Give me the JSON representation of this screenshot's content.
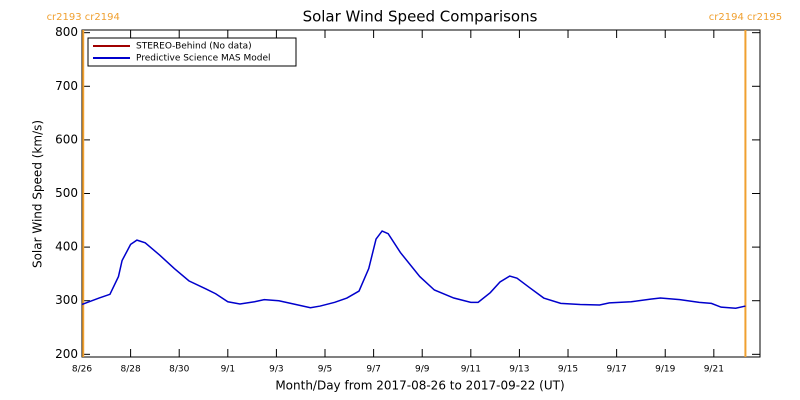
{
  "chart_data": {
    "type": "line",
    "title": "Solar Wind Speed Comparisons",
    "x_label": "Month/Day from 2017-08-26 to 2017-09-22 (UT)",
    "y_label": "Solar Wind Speed (km/s)",
    "x": [
      0,
      0.7,
      1.15,
      1.5,
      1.65,
      2,
      2.26,
      2.6,
      3.2,
      3.8,
      4.4,
      5.1,
      5.5,
      6,
      6.5,
      7.1,
      7.5,
      8.1,
      8.8,
      9.4,
      9.8,
      10.4,
      10.9,
      11.4,
      11.8,
      12.1,
      12.35,
      12.6,
      13.1,
      13.9,
      14.5,
      15.3,
      16,
      16.3,
      16.8,
      17.2,
      17.6,
      17.9,
      18.4,
      19,
      19.7,
      20.5,
      21.3,
      21.7,
      22.6,
      23.4,
      23.8,
      24.6,
      25.4,
      25.9,
      26.3,
      26.9,
      27.3
    ],
    "series": [
      {
        "name": "STEREO-Behind (No data)",
        "color": "#a00000",
        "values": [
          null,
          null,
          null,
          null,
          null,
          null,
          null,
          null,
          null,
          null,
          null,
          null,
          null,
          null,
          null,
          null,
          null,
          null,
          null,
          null,
          null,
          null,
          null,
          null,
          null,
          null,
          null,
          null,
          null,
          null,
          null,
          null,
          null,
          null,
          null,
          null,
          null,
          null,
          null,
          null,
          null,
          null,
          null,
          null,
          null,
          null,
          null,
          null,
          null,
          null,
          null,
          null,
          null
        ]
      },
      {
        "name": "Predictive Science MAS Model",
        "color": "#0000cc",
        "values": [
          293,
          305,
          312,
          345,
          375,
          405,
          413,
          408,
          385,
          360,
          337,
          322,
          313,
          298,
          294,
          298,
          302,
          300,
          293,
          287,
          290,
          297,
          305,
          318,
          360,
          415,
          430,
          425,
          390,
          345,
          320,
          305,
          297,
          297,
          315,
          335,
          346,
          342,
          325,
          305,
          295,
          293,
          292,
          296,
          298,
          303,
          305,
          302,
          297,
          295,
          288,
          286,
          290
        ]
      }
    ],
    "xlim": [
      0,
      27.9
    ],
    "xticks": [
      {
        "value": 0,
        "label": "8/26"
      },
      {
        "value": 2,
        "label": "8/28"
      },
      {
        "value": 4,
        "label": "8/30"
      },
      {
        "value": 6,
        "label": "9/1"
      },
      {
        "value": 8,
        "label": "9/3"
      },
      {
        "value": 10,
        "label": "9/5"
      },
      {
        "value": 12,
        "label": "9/7"
      },
      {
        "value": 14,
        "label": "9/9"
      },
      {
        "value": 16,
        "label": "9/11"
      },
      {
        "value": 18,
        "label": "9/13"
      },
      {
        "value": 20,
        "label": "9/15"
      },
      {
        "value": 22,
        "label": "9/17"
      },
      {
        "value": 24,
        "label": "9/19"
      },
      {
        "value": 26,
        "label": "9/21"
      }
    ],
    "ylim": [
      195,
      805
    ],
    "yticks": [
      200,
      300,
      400,
      500,
      600,
      700,
      800
    ],
    "legend": "upper left",
    "markers": [
      {
        "x": 0.05,
        "label": "cr2193 cr2194",
        "color": "#f0a030"
      },
      {
        "x": 27.3,
        "label": "cr2194 cr2195",
        "color": "#f0a030"
      }
    ]
  }
}
